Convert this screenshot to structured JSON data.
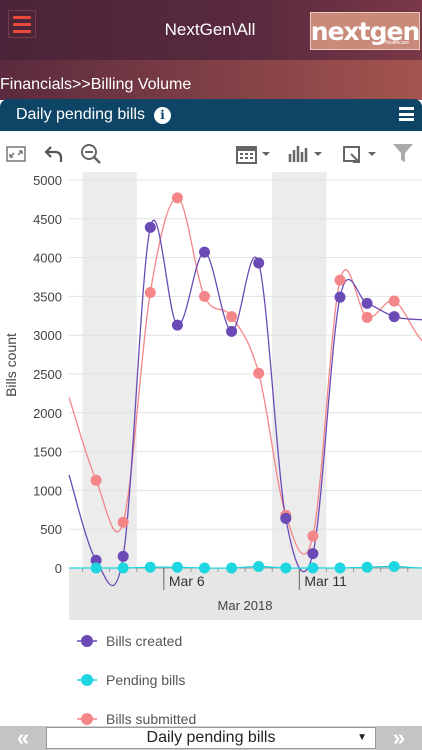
{
  "header": {
    "title": "NextGen\\All",
    "logo_text": "nextgen",
    "logo_sub": "Healthcare"
  },
  "breadcrumb": "Financials>>Billing Volume",
  "panel": {
    "title": "Daily pending bills"
  },
  "colors": {
    "created": "#6a4bb6",
    "pending": "#1ed6e0",
    "submitted": "#f4868a",
    "header_bg": "#0e4466"
  },
  "chart_data": {
    "type": "line",
    "ylabel": "Bills count",
    "xlabel": "Mar 2018",
    "x_ticks": [
      "Mar 6",
      "Mar 11"
    ],
    "ylim": [
      0,
      5000
    ],
    "y_ticks": [
      0,
      500,
      1000,
      1500,
      2000,
      2500,
      3000,
      3500,
      4000,
      4500,
      5000
    ],
    "grid": true,
    "weekend_bands": [
      [
        "Mar 3",
        "Mar 4"
      ],
      [
        "Mar 10",
        "Mar 11"
      ]
    ],
    "x": [
      "Mar 2",
      "Mar 3",
      "Mar 4",
      "Mar 5",
      "Mar 6",
      "Mar 7",
      "Mar 8",
      "Mar 9",
      "Mar 10",
      "Mar 11",
      "Mar 12",
      "Mar 13",
      "Mar 14",
      "Mar 15",
      "Mar 16"
    ],
    "series": [
      {
        "name": "Bills created",
        "values": [
          1200,
          100,
          150,
          4390,
          3130,
          4070,
          3050,
          3930,
          640,
          185,
          3490,
          3410,
          3240,
          3200,
          3200
        ]
      },
      {
        "name": "Pending bills",
        "values": [
          0,
          0,
          0,
          10,
          10,
          0,
          0,
          20,
          0,
          0,
          0,
          10,
          20,
          0,
          0
        ]
      },
      {
        "name": "Bills submitted",
        "values": [
          2200,
          1130,
          590,
          3550,
          4770,
          3500,
          3240,
          2510,
          680,
          410,
          3710,
          3230,
          3440,
          2940,
          2750
        ]
      }
    ]
  },
  "footer": {
    "selected": "Daily pending bills",
    "prev": "«",
    "next": "»"
  }
}
